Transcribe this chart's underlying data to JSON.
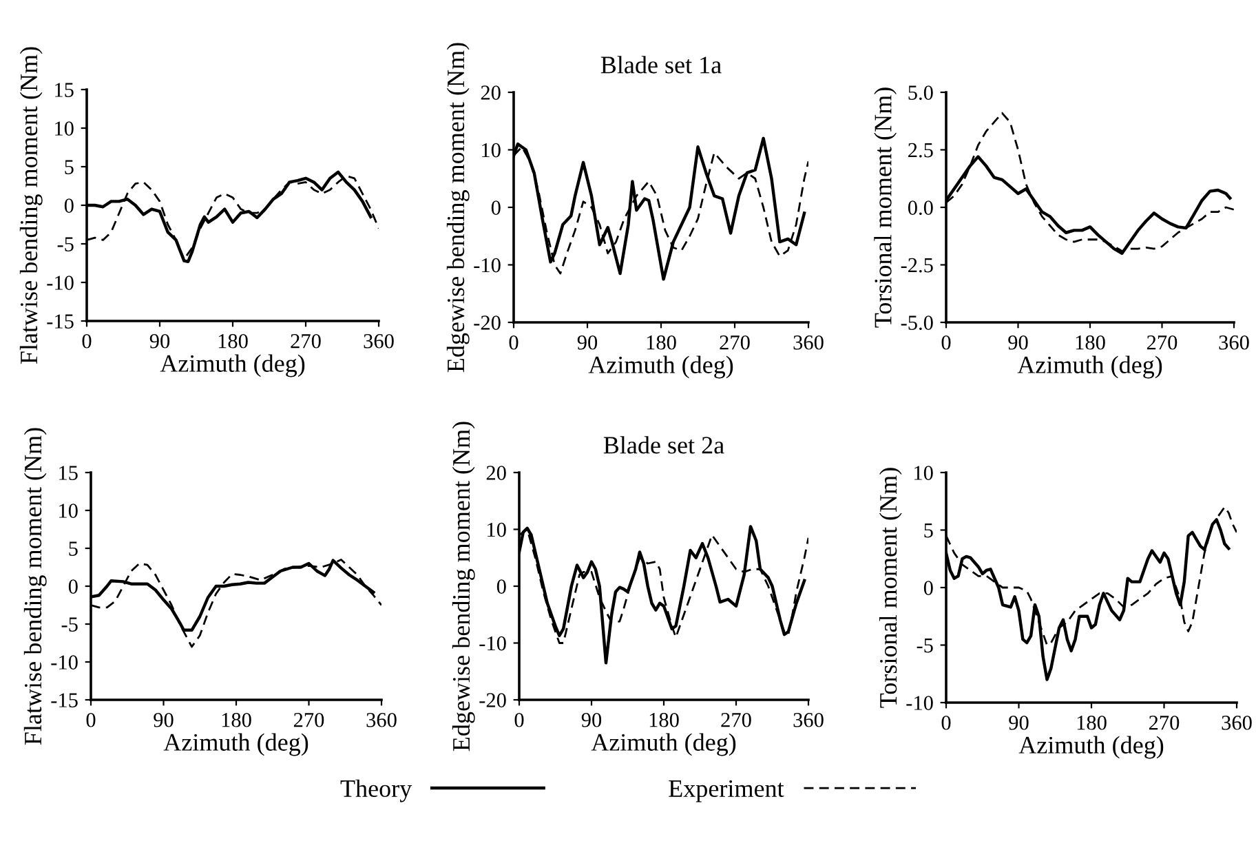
{
  "chart_data": [
    {
      "type": "line",
      "ylabel": "Flatwise bending moment (Nm)",
      "xlabel": "Azimuth (deg)",
      "xlim": [
        0,
        360
      ],
      "xticks": [
        0,
        90,
        180,
        270,
        360
      ],
      "ylim": [
        -15,
        15
      ],
      "yticks": [
        -15,
        -10,
        -5,
        0,
        5,
        10,
        15
      ],
      "legend": "bottom",
      "series": [
        {
          "name": "Theory",
          "color": "#000000",
          "line_style": "solid",
          "x": [
            0,
            10,
            20,
            30,
            40,
            50,
            60,
            70,
            80,
            90,
            100,
            110,
            120,
            125,
            130,
            140,
            145,
            150,
            160,
            170,
            180,
            190,
            200,
            210,
            220,
            230,
            240,
            250,
            260,
            270,
            280,
            290,
            300,
            310,
            320,
            330,
            340,
            350
          ],
          "values": [
            0,
            0,
            -0.2,
            0.5,
            0.5,
            0.8,
            0,
            -1.2,
            -0.5,
            -0.8,
            -3.5,
            -4.5,
            -7.2,
            -7.3,
            -6,
            -2.5,
            -1.5,
            -2.2,
            -1.5,
            -0.5,
            -2.2,
            -1,
            -0.8,
            -1.6,
            -0.5,
            0.8,
            1.5,
            3,
            3.2,
            3.5,
            3,
            2,
            3.5,
            4.3,
            3,
            2,
            0.5,
            -1.5
          ]
        },
        {
          "name": "Experiment",
          "color": "#000000",
          "line_style": "dashed",
          "x": [
            0,
            10,
            20,
            30,
            40,
            50,
            60,
            70,
            80,
            90,
            100,
            110,
            120,
            130,
            140,
            150,
            160,
            170,
            180,
            190,
            200,
            210,
            220,
            230,
            240,
            250,
            260,
            270,
            280,
            290,
            300,
            310,
            320,
            330,
            340,
            350,
            360
          ],
          "values": [
            -4.5,
            -4.2,
            -4.5,
            -3.5,
            -1,
            1.5,
            2.8,
            3,
            2,
            0.5,
            -2.5,
            -4.5,
            -7,
            -5.5,
            -3,
            -1,
            1,
            1.5,
            1,
            -0.5,
            -1,
            -1,
            -0.5,
            0.8,
            2,
            3,
            2.8,
            3,
            2,
            1.5,
            2,
            3,
            3.8,
            3.5,
            1.5,
            -0.5,
            -3
          ]
        }
      ]
    },
    {
      "type": "line",
      "title": "Blade set 1a",
      "ylabel": "Edgewise bending moment (Nm)",
      "xlabel": "Azimuth (deg)",
      "xlim": [
        0,
        360
      ],
      "xticks": [
        0,
        90,
        180,
        270,
        360
      ],
      "ylim": [
        -20,
        20
      ],
      "yticks": [
        -20,
        -10,
        0,
        10,
        20
      ],
      "series": [
        {
          "color": "#000000",
          "line_style": "solid",
          "x": [
            0,
            5,
            15,
            25,
            35,
            45,
            50,
            60,
            70,
            75,
            85,
            95,
            105,
            110,
            115,
            120,
            130,
            140,
            145,
            150,
            160,
            165,
            170,
            183,
            195,
            205,
            215,
            225,
            235,
            245,
            255,
            265,
            275,
            285,
            295,
            305,
            315,
            325,
            335,
            345,
            355
          ],
          "values": [
            9,
            11,
            10,
            6,
            -2,
            -9.5,
            -8,
            -3,
            -1.5,
            2,
            7.8,
            2,
            -6.5,
            -5,
            -3.5,
            -6,
            -11.5,
            -3,
            4.5,
            -0.5,
            1.5,
            1.2,
            -2,
            -12.5,
            -6,
            -3,
            0,
            10.5,
            6,
            2,
            1.5,
            -4.5,
            2,
            6,
            6.5,
            12,
            5,
            -6,
            -5.5,
            -6.5,
            -1
          ]
        },
        {
          "color": "#000000",
          "line_style": "dashed",
          "x": [
            0,
            10,
            20,
            30,
            40,
            50,
            57,
            65,
            75,
            85,
            95,
            105,
            115,
            125,
            135,
            150,
            165,
            175,
            185,
            195,
            205,
            215,
            225,
            235,
            245,
            260,
            275,
            285,
            295,
            305,
            315,
            325,
            335,
            345,
            355,
            360
          ],
          "values": [
            9,
            10.5,
            8,
            3,
            -4,
            -10,
            -11.5,
            -8,
            -4,
            1,
            0,
            -3,
            -8,
            -6,
            -2,
            2,
            4.5,
            2,
            -4,
            -7,
            -7.5,
            -5,
            -2,
            4,
            9.5,
            7,
            5,
            6,
            5,
            0,
            -6,
            -8.5,
            -7.5,
            -3,
            5,
            8
          ]
        }
      ]
    },
    {
      "type": "line",
      "ylabel": "Torsional moment (Nm)",
      "xlabel": "Azimuth (deg)",
      "xlim": [
        0,
        360
      ],
      "xticks": [
        0,
        90,
        180,
        270,
        360
      ],
      "ylim": [
        -5,
        5
      ],
      "yticks": [
        {
          "value": -5,
          "label": "-5.0"
        },
        {
          "value": -2.5,
          "label": "-2.5"
        },
        {
          "value": 0,
          "label": "0.0"
        },
        {
          "value": 2.5,
          "label": "2.5"
        },
        {
          "value": 5,
          "label": "5.0"
        }
      ],
      "series": [
        {
          "color": "#000000",
          "line_style": "solid",
          "x": [
            0,
            10,
            20,
            30,
            40,
            50,
            60,
            70,
            80,
            90,
            100,
            110,
            120,
            130,
            140,
            150,
            160,
            170,
            180,
            190,
            200,
            210,
            220,
            230,
            240,
            250,
            260,
            270,
            280,
            290,
            300,
            310,
            320,
            330,
            340,
            350,
            355
          ],
          "values": [
            0.3,
            0.8,
            1.3,
            1.8,
            2.2,
            1.8,
            1.3,
            1.2,
            0.9,
            0.6,
            0.8,
            0.3,
            -0.2,
            -0.4,
            -0.8,
            -1.1,
            -1.0,
            -1.0,
            -0.85,
            -1.2,
            -1.5,
            -1.8,
            -2.0,
            -1.5,
            -1.0,
            -0.6,
            -0.25,
            -0.5,
            -0.7,
            -0.85,
            -0.9,
            -0.3,
            0.3,
            0.7,
            0.75,
            0.6,
            0.4
          ]
        },
        {
          "color": "#000000",
          "line_style": "dashed",
          "x": [
            0,
            10,
            20,
            30,
            40,
            50,
            60,
            70,
            80,
            90,
            100,
            110,
            120,
            130,
            140,
            150,
            160,
            170,
            180,
            190,
            200,
            210,
            220,
            230,
            240,
            250,
            260,
            270,
            280,
            290,
            300,
            310,
            320,
            330,
            340,
            350,
            360
          ],
          "values": [
            0.2,
            0.5,
            1.0,
            1.8,
            2.7,
            3.3,
            3.7,
            4.1,
            3.7,
            2.5,
            1.0,
            0.2,
            -0.4,
            -0.8,
            -1.2,
            -1.4,
            -1.5,
            -1.4,
            -1.4,
            -1.4,
            -1.5,
            -1.7,
            -1.9,
            -1.8,
            -1.8,
            -1.75,
            -1.8,
            -1.7,
            -1.4,
            -1.1,
            -0.9,
            -0.7,
            -0.5,
            -0.2,
            -0.2,
            0,
            -0.1
          ]
        }
      ]
    },
    {
      "type": "line",
      "ylabel": "Flatwise bending moment (Nm)",
      "xlabel": "Azimuth (deg)",
      "xlim": [
        0,
        360
      ],
      "xticks": [
        0,
        90,
        180,
        270,
        360
      ],
      "ylim": [
        -15,
        15
      ],
      "yticks": [
        -15,
        -10,
        -5,
        0,
        5,
        10,
        15
      ],
      "series": [
        {
          "color": "#000000",
          "line_style": "solid",
          "x": [
            0,
            10,
            20,
            25,
            40,
            50,
            70,
            80,
            90,
            100,
            110,
            115,
            125,
            135,
            145,
            155,
            165,
            175,
            185,
            195,
            205,
            215,
            225,
            235,
            250,
            260,
            270,
            280,
            290,
            295,
            300,
            310,
            320,
            330,
            340,
            350
          ],
          "values": [
            -1.4,
            -1.2,
            0,
            0.7,
            0.6,
            0.3,
            0.3,
            -0.5,
            -1.8,
            -3,
            -4.8,
            -5.8,
            -5.8,
            -4,
            -1.5,
            0,
            0,
            0.2,
            0.3,
            0.5,
            0.4,
            0.4,
            1.2,
            2,
            2.5,
            2.5,
            3,
            2,
            1.4,
            2.2,
            3.4,
            2.4,
            1.5,
            0.8,
            0,
            -0.8
          ]
        },
        {
          "color": "#000000",
          "line_style": "dashed",
          "x": [
            0,
            10,
            20,
            30,
            40,
            50,
            60,
            70,
            80,
            90,
            100,
            110,
            120,
            125,
            135,
            145,
            155,
            165,
            175,
            185,
            195,
            210,
            225,
            240,
            255,
            270,
            285,
            300,
            310,
            320,
            330,
            340,
            350,
            360
          ],
          "values": [
            -2.5,
            -2.8,
            -2.8,
            -2,
            0,
            2,
            3,
            2.8,
            1.5,
            -0.5,
            -2.5,
            -5,
            -7,
            -8,
            -6.5,
            -3.5,
            -1,
            0.5,
            1.6,
            1.5,
            1.3,
            0.8,
            1.5,
            2.3,
            2.5,
            2.7,
            2.5,
            3,
            3.5,
            2.5,
            1.5,
            0,
            -1.2,
            -2.5
          ]
        }
      ]
    },
    {
      "type": "line",
      "title": "Blade set 2a",
      "ylabel": "Edgewise bending moment (Nm)",
      "xlabel": "Azimuth (deg)",
      "xlim": [
        0,
        360
      ],
      "xticks": [
        0,
        90,
        180,
        270,
        360
      ],
      "ylim": [
        -20,
        20
      ],
      "yticks": [
        -20,
        -10,
        0,
        10,
        20
      ],
      "series": [
        {
          "color": "#000000",
          "line_style": "solid",
          "x": [
            0,
            5,
            10,
            15,
            25,
            35,
            45,
            50,
            55,
            65,
            72,
            80,
            85,
            90,
            95,
            100,
            108,
            115,
            120,
            125,
            130,
            135,
            145,
            150,
            155,
            160,
            165,
            170,
            175,
            180,
            185,
            190,
            195,
            205,
            213,
            220,
            228,
            235,
            245,
            250,
            260,
            270,
            280,
            288,
            295,
            300,
            310,
            315,
            325,
            330,
            335,
            345,
            355
          ],
          "values": [
            6,
            9.5,
            10.2,
            9,
            3,
            -3,
            -7,
            -8.7,
            -7.5,
            0,
            3.7,
            1.5,
            2.5,
            4.3,
            3,
            0,
            -13.5,
            -5,
            -1,
            -0.2,
            -0.5,
            -1,
            3,
            6,
            4,
            0,
            -3,
            -4.2,
            -3,
            -3.5,
            -5.5,
            -7.5,
            -7,
            0,
            6.3,
            5,
            7.5,
            5,
            0,
            -2.8,
            -2.3,
            -3.5,
            2,
            10.5,
            8,
            3,
            1.5,
            0,
            -6,
            -8.5,
            -8,
            -3,
            1
          ]
        },
        {
          "color": "#000000",
          "line_style": "dashed",
          "x": [
            0,
            10,
            20,
            30,
            40,
            50,
            55,
            65,
            75,
            80,
            90,
            100,
            110,
            115,
            125,
            130,
            140,
            150,
            160,
            170,
            175,
            180,
            190,
            195,
            205,
            215,
            225,
            235,
            240,
            250,
            260,
            270,
            280,
            290,
            300,
            310,
            320,
            330,
            335,
            340,
            345,
            355,
            360
          ],
          "values": [
            9,
            10,
            5,
            -1,
            -6,
            -10,
            -10,
            -4,
            2,
            2.5,
            2.5,
            -2,
            -5,
            -6.3,
            -6.2,
            -4,
            1,
            5,
            4,
            4.3,
            3,
            -2,
            -7,
            -9,
            -5,
            -1,
            3,
            7,
            9,
            7,
            5,
            3,
            2.5,
            3,
            3,
            0,
            -4,
            -8,
            -8.5,
            -5,
            -1,
            5,
            8.5
          ]
        }
      ]
    },
    {
      "type": "line",
      "ylabel": "Torsional moment (Nm)",
      "xlabel": "Azimuth (deg)",
      "xlim": [
        0,
        360
      ],
      "xticks": [
        0,
        90,
        180,
        270,
        360
      ],
      "ylim": [
        -10,
        10
      ],
      "yticks": [
        -10,
        -5,
        0,
        5,
        10
      ],
      "series": [
        {
          "color": "#000000",
          "line_style": "solid",
          "x": [
            0,
            5,
            10,
            15,
            20,
            25,
            30,
            40,
            45,
            50,
            55,
            65,
            70,
            80,
            85,
            90,
            95,
            100,
            105,
            110,
            115,
            120,
            125,
            130,
            140,
            145,
            150,
            155,
            160,
            165,
            175,
            180,
            185,
            190,
            195,
            205,
            215,
            220,
            225,
            230,
            240,
            250,
            255,
            265,
            270,
            275,
            285,
            290,
            295,
            300,
            305,
            315,
            320,
            330,
            335,
            340,
            345,
            350
          ],
          "values": [
            3,
            1.5,
            0.8,
            1,
            2.5,
            2.7,
            2.6,
            1.8,
            1.2,
            1.5,
            1.6,
            0,
            -1.5,
            -1.7,
            -0.8,
            -2,
            -4.5,
            -4.8,
            -4.2,
            -1.5,
            -2.5,
            -6,
            -8,
            -7,
            -3.5,
            -2.8,
            -4.5,
            -5.5,
            -4.5,
            -2.5,
            -2.5,
            -3.5,
            -3.2,
            -1.5,
            -0.5,
            -2,
            -2.8,
            -2,
            0.8,
            0.5,
            0.5,
            2.5,
            3.2,
            2.2,
            3,
            2.5,
            -0.5,
            -1.5,
            0.5,
            4.5,
            4.8,
            3.6,
            3.3,
            5.5,
            5.9,
            5,
            3.8,
            3.4
          ]
        },
        {
          "color": "#000000",
          "line_style": "dashed",
          "x": [
            0,
            10,
            20,
            30,
            40,
            50,
            60,
            70,
            80,
            90,
            100,
            105,
            110,
            120,
            125,
            130,
            140,
            150,
            160,
            170,
            180,
            190,
            200,
            210,
            220,
            230,
            240,
            250,
            260,
            270,
            280,
            290,
            295,
            300,
            305,
            310,
            320,
            330,
            340,
            345,
            350,
            355,
            360
          ],
          "values": [
            4.5,
            3,
            2,
            1.5,
            1,
            1,
            0.5,
            0,
            0,
            0,
            -0.3,
            -1,
            -2,
            -4,
            -5,
            -4.8,
            -3.5,
            -3,
            -2,
            -1.5,
            -1,
            -0.5,
            -0.5,
            -1,
            -1.7,
            -1.5,
            -1,
            -0.5,
            0.3,
            0.8,
            1,
            -1,
            -3,
            -3.8,
            -3,
            -1,
            3,
            5.5,
            6.5,
            7,
            6.5,
            5.5,
            4.8
          ]
        }
      ]
    }
  ]
}
